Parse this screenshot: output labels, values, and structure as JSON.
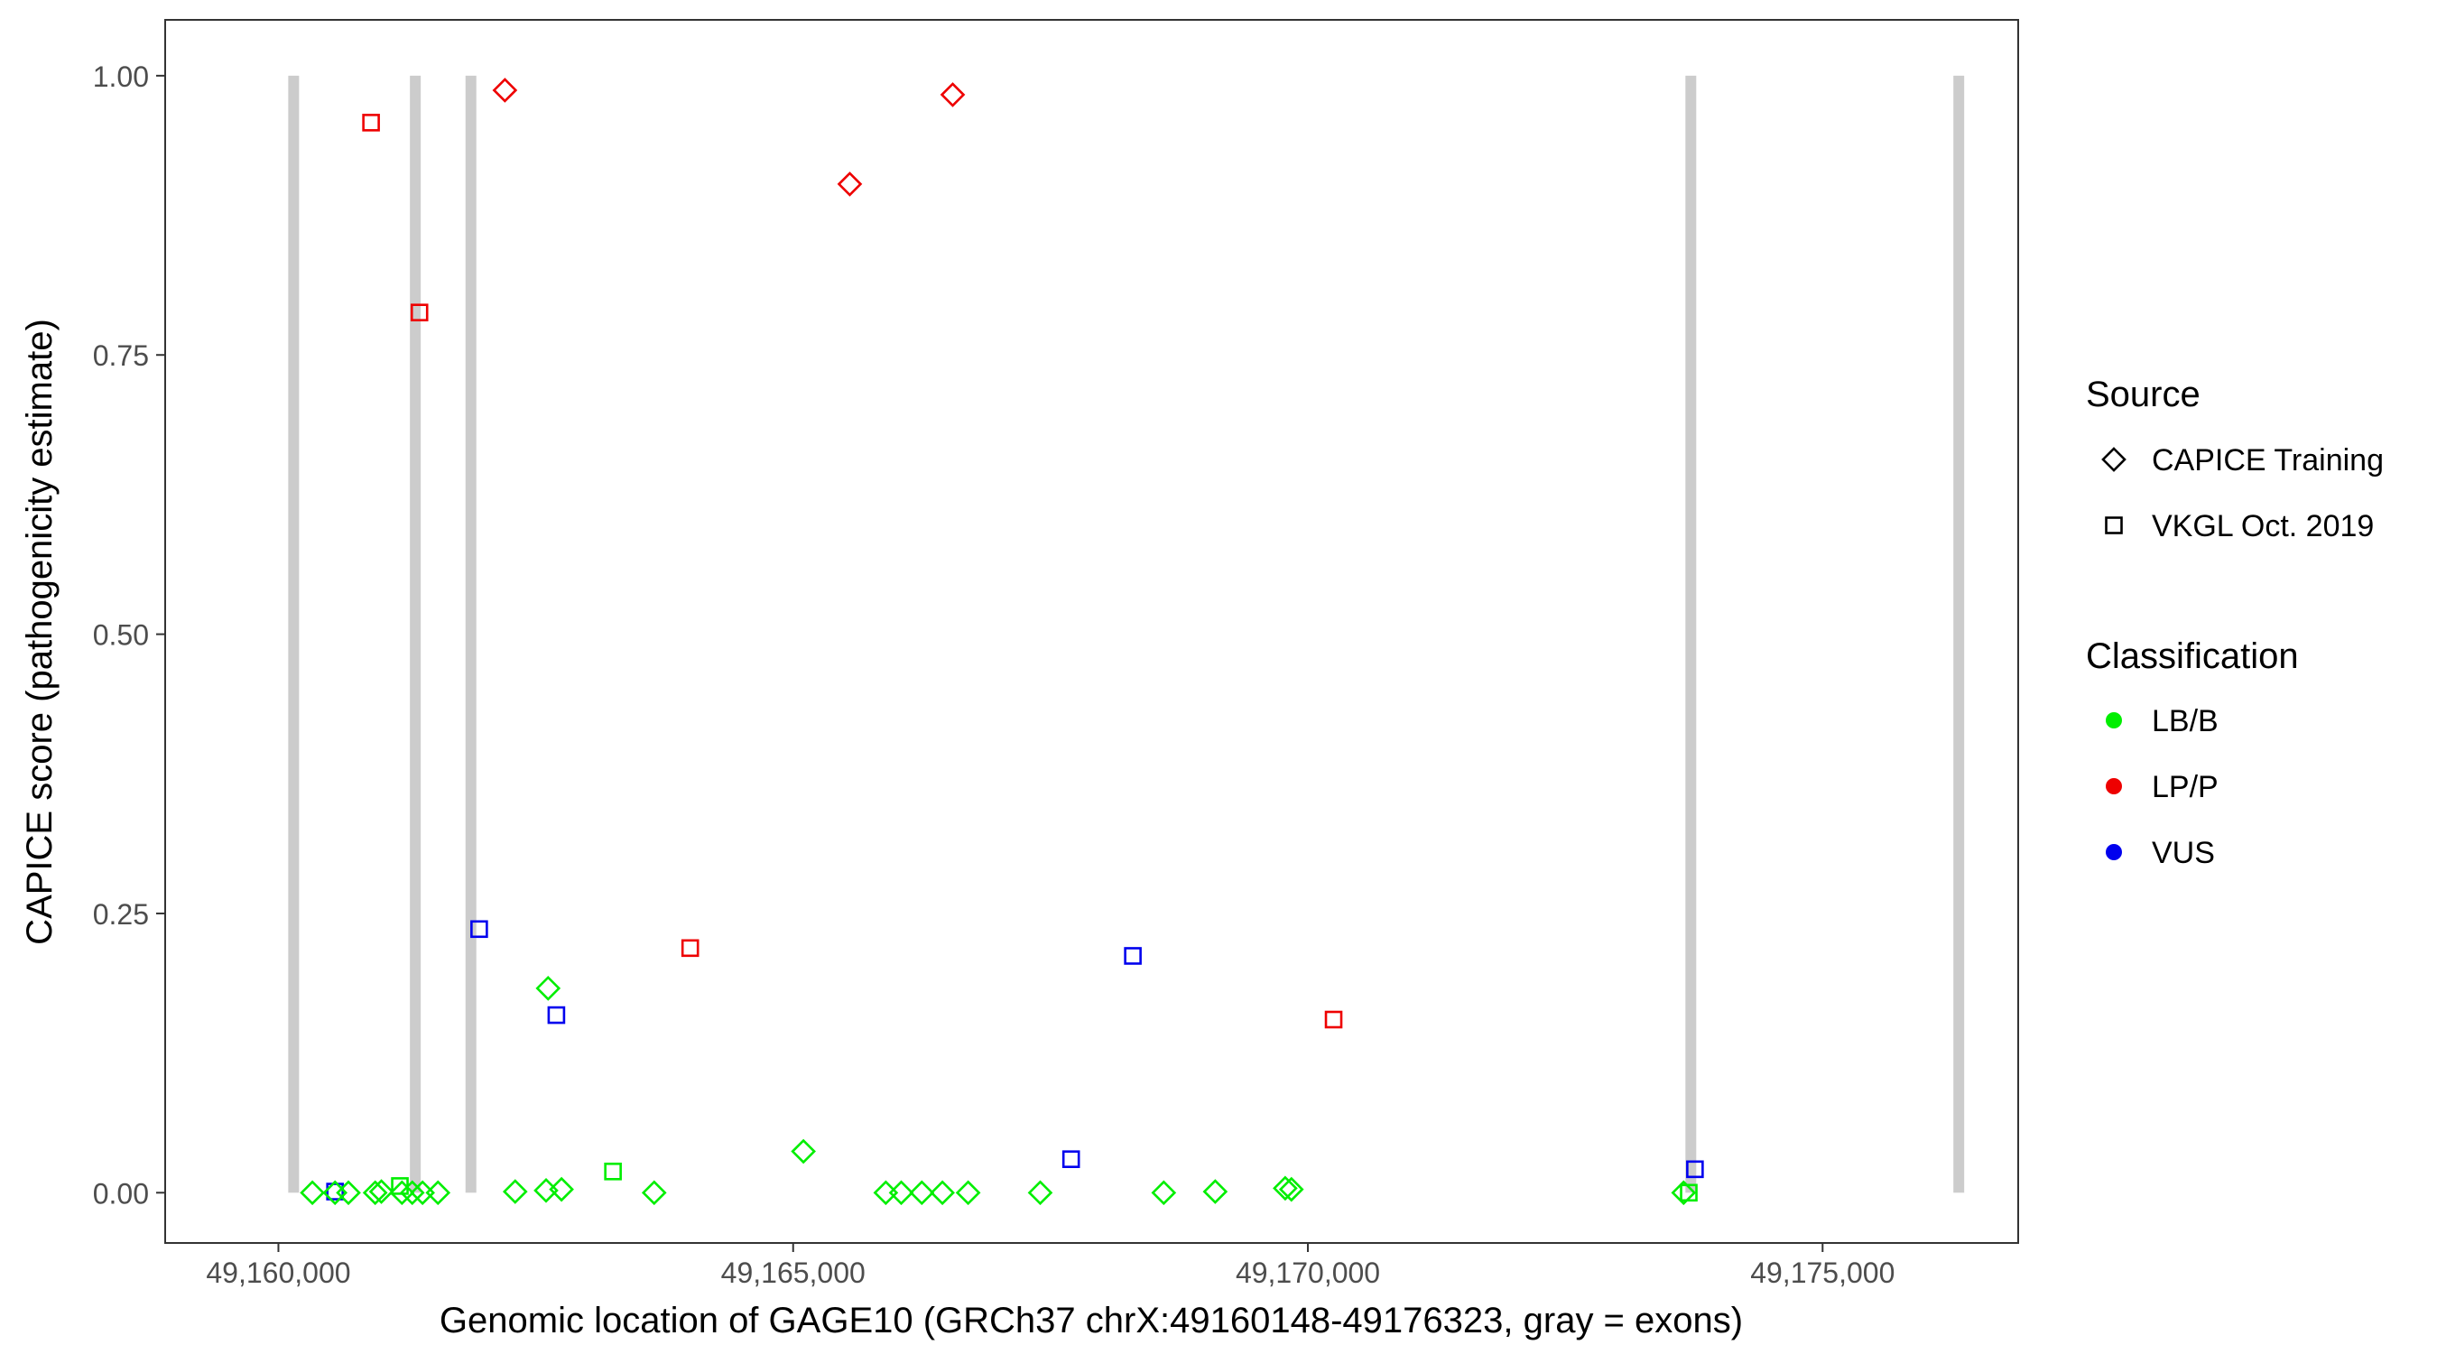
{
  "chart_data": {
    "type": "scatter",
    "xlabel": "Genomic location of GAGE10 (GRCh37 chrX:49160148-49176323, gray = exons)",
    "ylabel": "CAPICE score (pathogenicity estimate)",
    "xlim": [
      49158900,
      49176900
    ],
    "ylim": [
      -0.045,
      1.05
    ],
    "x_ticks": [
      49160000,
      49165000,
      49170000,
      49175000
    ],
    "x_tick_labels": [
      "49,160,000",
      "49,165,000",
      "49,170,000",
      "49,175,000"
    ],
    "y_ticks": [
      0,
      0.25,
      0.5,
      0.75,
      1
    ],
    "y_tick_labels": [
      "0.00",
      "0.25",
      "0.50",
      "0.75",
      "1.00"
    ],
    "grid": false,
    "exons_x": [
      49160148,
      49161330,
      49161870,
      49173720,
      49176323
    ],
    "legend": {
      "position": "right",
      "source": {
        "title": "Source",
        "entries": [
          {
            "label": "CAPICE Training",
            "shape": "diamond"
          },
          {
            "label": "VKGL Oct. 2019",
            "shape": "square"
          }
        ]
      },
      "classification": {
        "title": "Classification",
        "entries": [
          {
            "label": "LB/B",
            "color": "#00ee00"
          },
          {
            "label": "LP/P",
            "color": "#ee0000"
          },
          {
            "label": "VUS",
            "color": "#0000ee"
          }
        ]
      }
    },
    "colors": {
      "LB/B": "#00ee00",
      "LP/P": "#ee0000",
      "VUS": "#0000ee",
      "exon": "#cccccc"
    },
    "points": [
      {
        "x": 49160900,
        "y": 0.958,
        "source": "VKGL Oct. 2019",
        "class": "LP/P"
      },
      {
        "x": 49161370,
        "y": 0.788,
        "source": "VKGL Oct. 2019",
        "class": "LP/P"
      },
      {
        "x": 49162200,
        "y": 0.987,
        "source": "CAPICE Training",
        "class": "LP/P"
      },
      {
        "x": 49165550,
        "y": 0.903,
        "source": "CAPICE Training",
        "class": "LP/P"
      },
      {
        "x": 49166550,
        "y": 0.983,
        "source": "CAPICE Training",
        "class": "LP/P"
      },
      {
        "x": 49164000,
        "y": 0.219,
        "source": "VKGL Oct. 2019",
        "class": "LP/P"
      },
      {
        "x": 49170250,
        "y": 0.155,
        "source": "VKGL Oct. 2019",
        "class": "LP/P"
      },
      {
        "x": 49161950,
        "y": 0.236,
        "source": "VKGL Oct. 2019",
        "class": "VUS"
      },
      {
        "x": 49162700,
        "y": 0.159,
        "source": "VKGL Oct. 2019",
        "class": "VUS"
      },
      {
        "x": 49168300,
        "y": 0.212,
        "source": "VKGL Oct. 2019",
        "class": "VUS"
      },
      {
        "x": 49167700,
        "y": 0.03,
        "source": "VKGL Oct. 2019",
        "class": "VUS"
      },
      {
        "x": 49173760,
        "y": 0.021,
        "source": "VKGL Oct. 2019",
        "class": "VUS"
      },
      {
        "x": 49160550,
        "y": 0.001,
        "source": "VKGL Oct. 2019",
        "class": "VUS"
      },
      {
        "x": 49162620,
        "y": 0.183,
        "source": "CAPICE Training",
        "class": "LB/B"
      },
      {
        "x": 49165100,
        "y": 0.037,
        "source": "CAPICE Training",
        "class": "LB/B"
      },
      {
        "x": 49163250,
        "y": 0.019,
        "source": "VKGL Oct. 2019",
        "class": "LB/B"
      },
      {
        "x": 49161180,
        "y": 0.006,
        "source": "VKGL Oct. 2019",
        "class": "LB/B"
      },
      {
        "x": 49160330,
        "y": 0.0,
        "source": "CAPICE Training",
        "class": "LB/B"
      },
      {
        "x": 49160550,
        "y": 0.0,
        "source": "CAPICE Training",
        "class": "LB/B"
      },
      {
        "x": 49160680,
        "y": 0.0,
        "source": "CAPICE Training",
        "class": "LB/B"
      },
      {
        "x": 49160940,
        "y": 0.0,
        "source": "CAPICE Training",
        "class": "LB/B"
      },
      {
        "x": 49161000,
        "y": 0.001,
        "source": "CAPICE Training",
        "class": "LB/B"
      },
      {
        "x": 49161200,
        "y": 0.0,
        "source": "CAPICE Training",
        "class": "LB/B"
      },
      {
        "x": 49161300,
        "y": 0.0,
        "source": "CAPICE Training",
        "class": "LB/B"
      },
      {
        "x": 49161400,
        "y": 0.0,
        "source": "CAPICE Training",
        "class": "LB/B"
      },
      {
        "x": 49161550,
        "y": 0.0,
        "source": "CAPICE Training",
        "class": "LB/B"
      },
      {
        "x": 49162300,
        "y": 0.001,
        "source": "CAPICE Training",
        "class": "LB/B"
      },
      {
        "x": 49162600,
        "y": 0.002,
        "source": "CAPICE Training",
        "class": "LB/B"
      },
      {
        "x": 49162750,
        "y": 0.003,
        "source": "CAPICE Training",
        "class": "LB/B"
      },
      {
        "x": 49163650,
        "y": 0.0,
        "source": "CAPICE Training",
        "class": "LB/B"
      },
      {
        "x": 49165900,
        "y": 0.0,
        "source": "CAPICE Training",
        "class": "LB/B"
      },
      {
        "x": 49166050,
        "y": 0.0,
        "source": "CAPICE Training",
        "class": "LB/B"
      },
      {
        "x": 49166250,
        "y": 0.0,
        "source": "CAPICE Training",
        "class": "LB/B"
      },
      {
        "x": 49166450,
        "y": 0.0,
        "source": "CAPICE Training",
        "class": "LB/B"
      },
      {
        "x": 49166700,
        "y": 0.0,
        "source": "CAPICE Training",
        "class": "LB/B"
      },
      {
        "x": 49167400,
        "y": 0.0,
        "source": "CAPICE Training",
        "class": "LB/B"
      },
      {
        "x": 49168600,
        "y": 0.0,
        "source": "CAPICE Training",
        "class": "LB/B"
      },
      {
        "x": 49169100,
        "y": 0.001,
        "source": "CAPICE Training",
        "class": "LB/B"
      },
      {
        "x": 49169780,
        "y": 0.004,
        "source": "CAPICE Training",
        "class": "LB/B"
      },
      {
        "x": 49169840,
        "y": 0.003,
        "source": "CAPICE Training",
        "class": "LB/B"
      },
      {
        "x": 49173650,
        "y": 0.0,
        "source": "CAPICE Training",
        "class": "LB/B"
      },
      {
        "x": 49173700,
        "y": 0.0,
        "source": "VKGL Oct. 2019",
        "class": "LB/B"
      }
    ]
  }
}
